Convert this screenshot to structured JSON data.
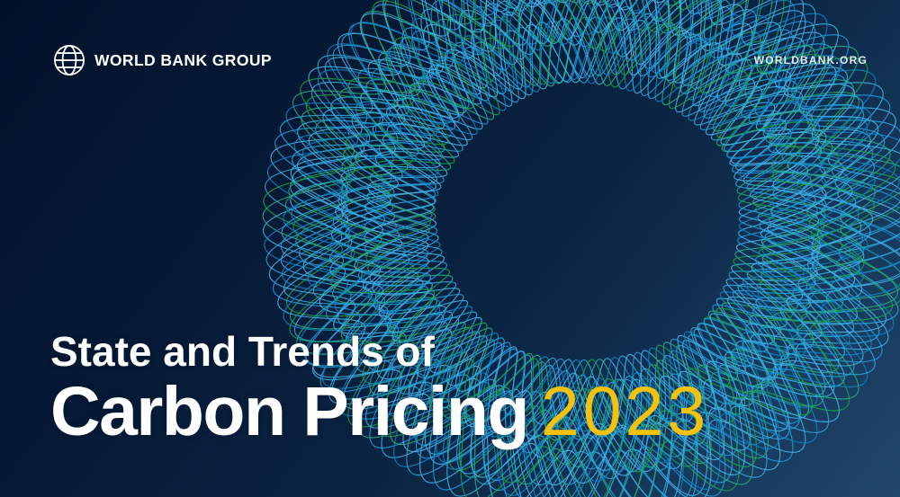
{
  "header": {
    "logo_text": "WORLD BANK GROUP",
    "website": "WORLDBANK.ORG"
  },
  "title": {
    "line1": "State and Trends of",
    "line2": "Carbon Pricing",
    "year": "2023"
  },
  "icons": {
    "globe": "world-bank-globe-icon",
    "background_art": "spirograph-ring-pattern"
  },
  "colors": {
    "background_dark_navy": "#061b37",
    "background_light_navy": "#204669",
    "line_blue": "#1e9cd8",
    "line_blue_light": "#3fb2e4",
    "line_green": "#2fae57",
    "line_teal": "#27a87c",
    "year_yellow": "#f4c20d",
    "text_white": "#ffffff"
  }
}
